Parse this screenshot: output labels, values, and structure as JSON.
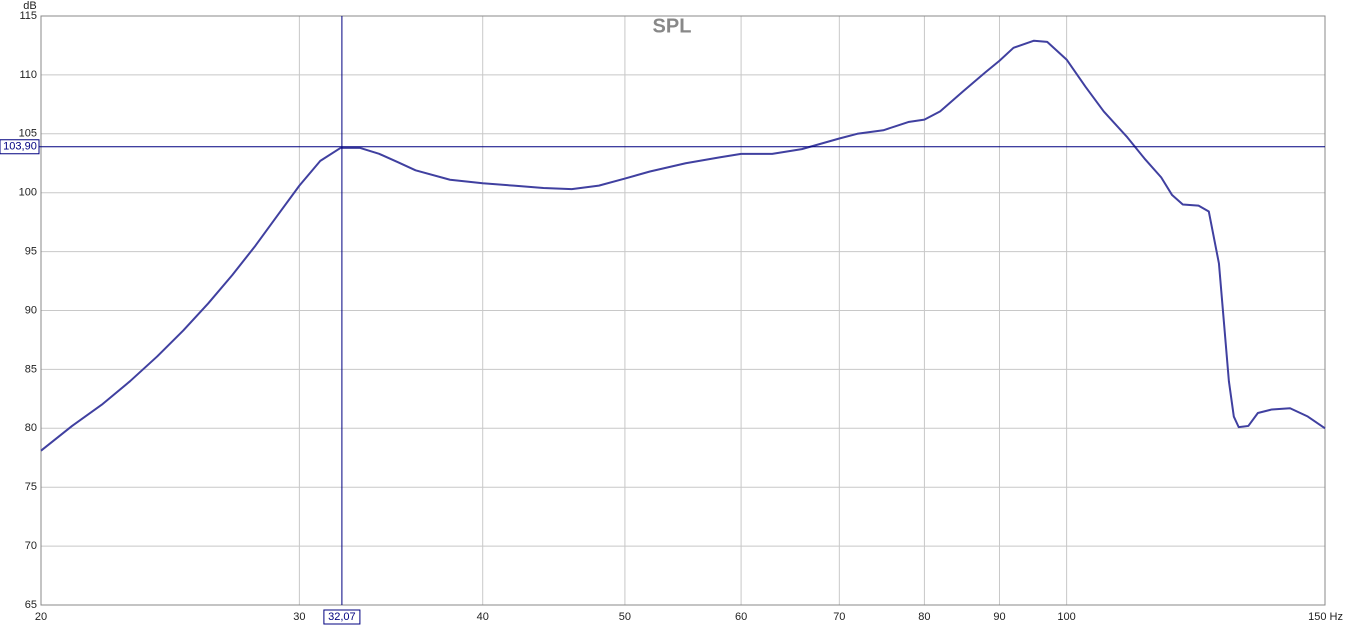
{
  "chart_data": {
    "type": "line",
    "title": "SPL",
    "y_label": "dB",
    "x": [
      20,
      21,
      22,
      23,
      24,
      25,
      26,
      27,
      28,
      29,
      30,
      31,
      32,
      33,
      34,
      35,
      36,
      38,
      40,
      42,
      44,
      46,
      48,
      50,
      52,
      55,
      58,
      60,
      63,
      66,
      70,
      72,
      75,
      78,
      80,
      82,
      85,
      88,
      90,
      92,
      95,
      97,
      100,
      103,
      106,
      110,
      113,
      116,
      118,
      120,
      123,
      125,
      127,
      128,
      129,
      130,
      131,
      133,
      135,
      138,
      142,
      146,
      150
    ],
    "series": [
      {
        "name": "SPL",
        "color": "#4040a0",
        "values": [
          78.1,
          80.2,
          82.0,
          84.0,
          86.1,
          88.3,
          90.6,
          93.0,
          95.5,
          98.1,
          100.6,
          102.7,
          103.8,
          103.8,
          103.3,
          102.6,
          101.9,
          101.1,
          100.8,
          100.6,
          100.4,
          100.3,
          100.6,
          101.2,
          101.8,
          102.5,
          103.0,
          103.3,
          103.3,
          103.7,
          104.6,
          105.0,
          105.3,
          106.0,
          106.2,
          106.9,
          108.6,
          110.2,
          111.2,
          112.3,
          112.9,
          112.8,
          111.3,
          109.0,
          106.9,
          104.7,
          102.9,
          101.3,
          99.8,
          99.0,
          98.9,
          98.4,
          94.0,
          89.0,
          84.0,
          81.0,
          80.1,
          80.2,
          81.3,
          81.6,
          81.7,
          81.0,
          80.0
        ]
      }
    ],
    "xlim": [
      20,
      150
    ],
    "log_x": true,
    "xticks": [
      20,
      30,
      40,
      50,
      60,
      70,
      80,
      90,
      100,
      {
        "value": 150,
        "label": "150 Hz"
      }
    ],
    "ylim": [
      65,
      115
    ],
    "yticks": [
      65,
      70,
      75,
      80,
      85,
      90,
      95,
      100,
      105,
      110,
      115
    ],
    "grid": true,
    "cursor": {
      "x": {
        "value": 32.07,
        "label": "32,07"
      },
      "y": {
        "value": 103.9,
        "label": "103,90"
      },
      "color": "#000080"
    }
  }
}
